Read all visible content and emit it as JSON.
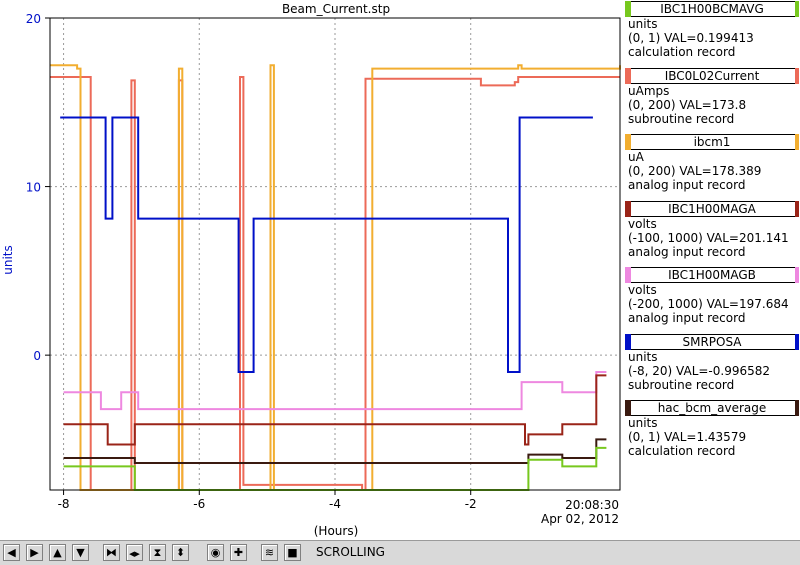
{
  "window": {
    "title": "Beam_Current.stp"
  },
  "colors": {
    "IBC1H00BCMAVG": "#77c81e",
    "IBC0L02Current": "#ec6a58",
    "ibcm1": "#f2ae30",
    "IBC1H00MAGA": "#9a2418",
    "IBC1H00MAGB": "#ee88e0",
    "SMRPOSA": "#0010c8",
    "hac_bcm_average": "#3a1a10"
  },
  "chart_data": {
    "type": "line",
    "title": "Beam_Current.stp",
    "xlabel": "(Hours)",
    "ylabel": "units",
    "xlim": [
      -8.2,
      0.2
    ],
    "ylim": [
      -8,
      20
    ],
    "x_ticks": [
      "-8",
      "-6",
      "-4",
      "-2"
    ],
    "y_ticks": [
      "20",
      "10",
      "0"
    ],
    "end_time": "20:08:30",
    "end_date": "Apr 02, 2012",
    "grid": true,
    "series": [
      {
        "name": "IBC0L02Current",
        "color_key": "IBC0L02Current",
        "x": [
          -8.2,
          -7.7,
          -7.6,
          -7.0,
          -6.95,
          -6.3,
          -6.25,
          -5.4,
          -5.35,
          -3.6,
          -3.55,
          -1.9,
          -1.85,
          -1.35,
          -1.3,
          0.2
        ],
        "y": [
          16.5,
          16.5,
          -8,
          16.3,
          -8,
          16.3,
          -8,
          16.5,
          -7.7,
          -8,
          16.4,
          16.4,
          16.0,
          16.2,
          16.5,
          16.5
        ]
      },
      {
        "name": "ibcm1",
        "color_key": "ibcm1",
        "x": [
          -8.2,
          -7.8,
          -7.75,
          -6.3,
          -6.25,
          -4.95,
          -4.9,
          -3.5,
          -3.45,
          -1.3,
          -1.25,
          0.2
        ],
        "y": [
          17.2,
          17.0,
          -8,
          17.0,
          -8,
          17.2,
          -8,
          -8,
          17.0,
          17.2,
          17.0,
          17.2
        ]
      },
      {
        "name": "SMRPOSA",
        "color_key": "SMRPOSA",
        "x": [
          -8.05,
          -7.4,
          -7.38,
          -7.3,
          -7.28,
          -7.0,
          -6.9,
          -5.45,
          -5.42,
          -5.25,
          -5.2,
          -1.5,
          -1.45,
          -1.3,
          -1.28,
          -0.2
        ],
        "y": [
          14.1,
          14.1,
          8.1,
          8.1,
          14.1,
          14.1,
          8.1,
          8.1,
          -1.0,
          -1.0,
          8.1,
          8.1,
          -1.0,
          -1.0,
          14.1,
          14.1
        ]
      },
      {
        "name": "IBC1H00MAGB",
        "color_key": "IBC1H00MAGB",
        "x": [
          -8.0,
          -7.5,
          -7.45,
          -7.2,
          -7.15,
          -6.95,
          -6.9,
          -1.3,
          -1.25,
          -0.7,
          -0.65,
          -0.2,
          -0.15,
          0.0
        ],
        "y": [
          -2.2,
          -2.2,
          -3.2,
          -3.2,
          -2.2,
          -2.2,
          -3.2,
          -3.2,
          -1.6,
          -1.6,
          -2.2,
          -2.2,
          -1.0,
          -1.0
        ]
      },
      {
        "name": "IBC1H00MAGA",
        "color_key": "IBC1H00MAGA",
        "x": [
          -8.0,
          -7.4,
          -7.35,
          -7.0,
          -6.95,
          -1.2,
          -1.15,
          -0.7,
          -0.65,
          -0.2,
          -0.15,
          0.0
        ],
        "y": [
          -4.1,
          -4.1,
          -5.3,
          -5.3,
          -4.1,
          -5.3,
          -4.7,
          -4.7,
          -4.1,
          -4.1,
          -1.2,
          -1.2
        ]
      },
      {
        "name": "hac_bcm_average",
        "color_key": "hac_bcm_average",
        "x": [
          -8.0,
          -7.0,
          -6.95,
          -1.2,
          -1.15,
          -0.7,
          -0.65,
          -0.2,
          -0.15,
          0.0
        ],
        "y": [
          -6.1,
          -6.1,
          -6.4,
          -6.4,
          -5.9,
          -5.9,
          -6.1,
          -6.1,
          -5.0,
          -5.0
        ]
      },
      {
        "name": "IBC1H00BCMAVG",
        "color_key": "IBC1H00BCMAVG",
        "x": [
          -8.0,
          -7.0,
          -6.95,
          -1.2,
          -1.15,
          -0.7,
          -0.65,
          -0.2,
          -0.15,
          0.0
        ],
        "y": [
          -6.6,
          -6.6,
          -8.0,
          -8.0,
          -6.2,
          -6.2,
          -6.6,
          -6.6,
          -5.5,
          -5.5
        ]
      }
    ]
  },
  "legend": [
    {
      "key": "IBC1H00BCMAVG",
      "name": "IBC1H00BCMAVG",
      "units": "units",
      "range": "(0, 1) VAL=0.199413",
      "record": "calculation record"
    },
    {
      "key": "IBC0L02Current",
      "name": "IBC0L02Current",
      "units": "uAmps",
      "range": "(0, 200) VAL=173.8",
      "record": "subroutine record"
    },
    {
      "key": "ibcm1",
      "name": "ibcm1",
      "units": "uA",
      "range": "(0, 200) VAL=178.389",
      "record": "analog input record"
    },
    {
      "key": "IBC1H00MAGA",
      "name": "IBC1H00MAGA",
      "units": "volts",
      "range": "(-100, 1000) VAL=201.141",
      "record": "analog input record"
    },
    {
      "key": "IBC1H00MAGB",
      "name": "IBC1H00MAGB",
      "units": "volts",
      "range": "(-200, 1000) VAL=197.684",
      "record": "analog input record"
    },
    {
      "key": "SMRPOSA",
      "name": "SMRPOSA",
      "units": "units",
      "range": "(-8, 20) VAL=-0.996582",
      "record": "subroutine record"
    },
    {
      "key": "hac_bcm_average",
      "name": "hac_bcm_average",
      "units": "units",
      "range": "(0, 1) VAL=1.43579",
      "record": "calculation record"
    }
  ],
  "toolbar": {
    "buttons": [
      {
        "name": "scroll-left-button",
        "icon": "arrow-left-icon",
        "glyph": "◀"
      },
      {
        "name": "scroll-right-button",
        "icon": "arrow-right-icon",
        "glyph": "▶"
      },
      {
        "name": "scroll-up-button",
        "icon": "arrow-up-icon",
        "glyph": "▲"
      },
      {
        "name": "scroll-down-button",
        "icon": "arrow-down-icon",
        "glyph": "▼"
      },
      {
        "name": "zoom-in-x-button",
        "icon": "zoom-in-x-icon",
        "glyph": "⧓"
      },
      {
        "name": "zoom-out-x-button",
        "icon": "zoom-out-x-icon",
        "glyph": "◀▶"
      },
      {
        "name": "zoom-in-y-button",
        "icon": "zoom-in-y-icon",
        "glyph": "⧗"
      },
      {
        "name": "zoom-out-y-button",
        "icon": "zoom-out-y-icon",
        "glyph": "⬍"
      },
      {
        "name": "autoscale-button",
        "icon": "target-icon",
        "glyph": "◉"
      },
      {
        "name": "center-button",
        "icon": "crosshair-icon",
        "glyph": "✚"
      },
      {
        "name": "scroll-mode-button",
        "icon": "waveform-icon",
        "glyph": "≋"
      },
      {
        "name": "stop-button",
        "icon": "stop-icon",
        "glyph": "■"
      }
    ],
    "status": "SCROLLING"
  }
}
